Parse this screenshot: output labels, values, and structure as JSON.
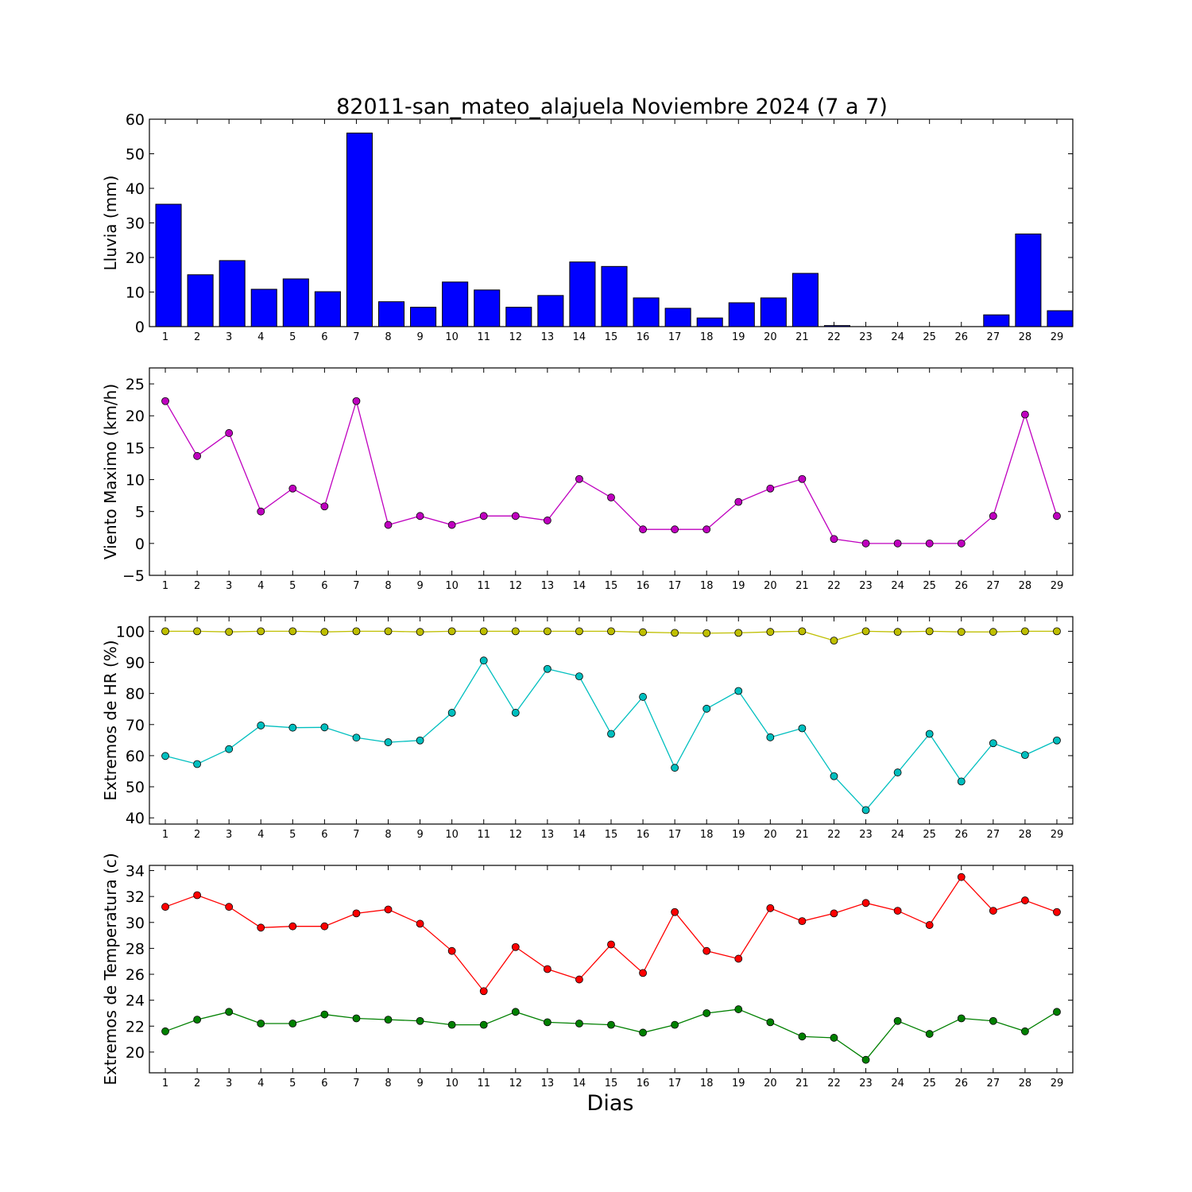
{
  "title": "82011-san_mateo_alajuela Noviembre 2024  (7 a 7)",
  "xlabel": "Dias",
  "colors": {
    "rain_bar": "#0000ff",
    "wind": "#bf00bf",
    "hr_max": "#bfbf00",
    "hr_min": "#00bfbf",
    "temp_max": "#ff0000",
    "temp_min": "#008000"
  },
  "chart_data": [
    {
      "type": "bar",
      "ylabel": "Lluvia (mm)",
      "categories": [
        "1",
        "2",
        "3",
        "4",
        "5",
        "6",
        "7",
        "8",
        "9",
        "10",
        "11",
        "12",
        "13",
        "14",
        "15",
        "16",
        "17",
        "18",
        "19",
        "20",
        "21",
        "22",
        "23",
        "24",
        "25",
        "26",
        "27",
        "28",
        "29"
      ],
      "values": [
        35.4,
        15.0,
        19.1,
        10.8,
        13.8,
        10.1,
        56.0,
        7.2,
        5.6,
        12.9,
        10.6,
        5.6,
        9.0,
        18.7,
        17.4,
        8.3,
        5.3,
        2.5,
        6.9,
        8.3,
        15.4,
        0.3,
        0,
        0,
        0,
        0,
        3.4,
        26.8,
        4.6
      ],
      "ylim": [
        0,
        60
      ],
      "yticks": [
        0,
        10,
        20,
        30,
        40,
        50,
        60
      ]
    },
    {
      "type": "line",
      "ylabel": "Viento Maximo (km/h)",
      "categories": [
        "1",
        "2",
        "3",
        "4",
        "5",
        "6",
        "7",
        "8",
        "9",
        "10",
        "11",
        "12",
        "13",
        "14",
        "15",
        "16",
        "17",
        "18",
        "19",
        "20",
        "21",
        "22",
        "23",
        "24",
        "25",
        "26",
        "27",
        "28",
        "29"
      ],
      "series": [
        {
          "values": [
            22.3,
            13.7,
            17.3,
            5.0,
            8.6,
            5.8,
            22.3,
            2.9,
            4.3,
            2.9,
            4.3,
            4.3,
            3.6,
            10.1,
            7.2,
            2.2,
            2.2,
            2.2,
            6.5,
            8.6,
            10.1,
            0.7,
            0,
            0,
            0,
            0,
            4.3,
            20.2,
            4.3
          ]
        }
      ],
      "ylim": [
        -5,
        27.5
      ],
      "yticks": [
        -5,
        0,
        5,
        10,
        15,
        20,
        25
      ]
    },
    {
      "type": "line",
      "ylabel": "Extremos de HR (%)",
      "categories": [
        "1",
        "2",
        "3",
        "4",
        "5",
        "6",
        "7",
        "8",
        "9",
        "10",
        "11",
        "12",
        "13",
        "14",
        "15",
        "16",
        "17",
        "18",
        "19",
        "20",
        "21",
        "22",
        "23",
        "24",
        "25",
        "26",
        "27",
        "28",
        "29"
      ],
      "series": [
        {
          "values": [
            100,
            100,
            99.8,
            100,
            100,
            99.8,
            100,
            100,
            99.8,
            100,
            100,
            100,
            100,
            100,
            100,
            99.7,
            99.5,
            99.4,
            99.5,
            99.8,
            100,
            97,
            100,
            99.8,
            100,
            99.8,
            99.8,
            100,
            100
          ]
        },
        {
          "values": [
            59.9,
            57.3,
            62.1,
            69.7,
            69.0,
            69.1,
            65.8,
            64.3,
            64.9,
            73.8,
            90.6,
            73.8,
            87.9,
            85.5,
            67.0,
            78.9,
            56.1,
            75.1,
            80.8,
            65.9,
            68.8,
            53.4,
            42.5,
            54.6,
            67.0,
            51.7,
            64.0,
            60.2,
            64.9
          ]
        }
      ],
      "ylim": [
        38,
        104.7
      ],
      "yticks": [
        40,
        50,
        60,
        70,
        80,
        90,
        100
      ]
    },
    {
      "type": "line",
      "ylabel": "Extremos de Temperatura (c)",
      "categories": [
        "1",
        "2",
        "3",
        "4",
        "5",
        "6",
        "7",
        "8",
        "9",
        "10",
        "11",
        "12",
        "13",
        "14",
        "15",
        "16",
        "17",
        "18",
        "19",
        "20",
        "21",
        "22",
        "23",
        "24",
        "25",
        "26",
        "27",
        "28",
        "29"
      ],
      "series": [
        {
          "values": [
            31.2,
            32.1,
            31.2,
            29.6,
            29.7,
            29.7,
            30.7,
            31.0,
            29.9,
            27.8,
            24.7,
            28.1,
            26.4,
            25.6,
            28.3,
            26.1,
            30.8,
            27.8,
            27.2,
            31.1,
            30.1,
            30.7,
            31.5,
            30.9,
            29.8,
            33.5,
            30.9,
            31.7,
            30.8
          ]
        },
        {
          "values": [
            21.6,
            22.5,
            23.1,
            22.2,
            22.2,
            22.9,
            22.6,
            22.5,
            22.4,
            22.1,
            22.1,
            23.1,
            22.3,
            22.2,
            22.1,
            21.5,
            22.1,
            23.0,
            23.3,
            22.3,
            21.2,
            21.1,
            19.4,
            22.4,
            21.4,
            22.6,
            22.4,
            21.6,
            23.1
          ]
        }
      ],
      "ylim": [
        18.4,
        34.4
      ],
      "yticks": [
        20,
        22,
        24,
        26,
        28,
        30,
        32,
        34
      ]
    }
  ]
}
